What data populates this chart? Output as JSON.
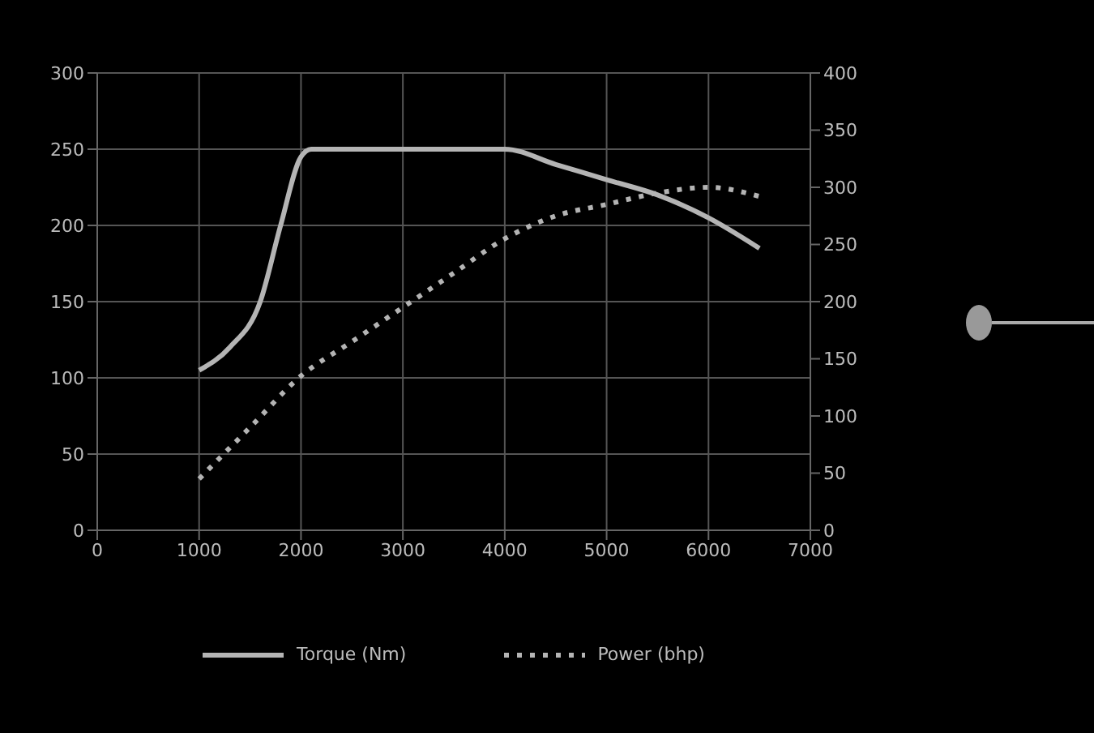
{
  "chart_data": {
    "type": "line",
    "xlim": [
      0,
      7000
    ],
    "xticks": [
      0,
      1000,
      2000,
      3000,
      4000,
      5000,
      6000,
      7000
    ],
    "ylim": [
      0,
      300
    ],
    "yticks": [
      0,
      50,
      100,
      150,
      200,
      250,
      300
    ],
    "y2lim": [
      0,
      400
    ],
    "y2ticks": [
      0,
      50,
      100,
      150,
      200,
      250,
      300,
      350,
      400
    ],
    "grid": true,
    "legend": "bottom",
    "series": [
      {
        "name": "Torque (Nm)",
        "color": "#b4b4b4",
        "line_style": "solid",
        "x": [
          1000,
          1300,
          1600,
          1800,
          2000,
          2100,
          4000,
          4500,
          5000,
          5500,
          6000,
          6500
        ],
        "values": [
          105,
          120,
          150,
          200,
          245,
          250,
          250,
          240,
          230,
          220,
          205,
          185
        ]
      },
      {
        "name": "Power (bhp)",
        "color": "#b4b4b4",
        "line_style": "dotted",
        "axis": "y2",
        "x": [
          1000,
          1500,
          2000,
          2500,
          3000,
          3500,
          4000,
          4500,
          5000,
          5500,
          6000,
          6500
        ],
        "values": [
          45,
          90,
          135,
          165,
          195,
          225,
          255,
          275,
          285,
          295,
          300,
          292
        ]
      }
    ]
  }
}
